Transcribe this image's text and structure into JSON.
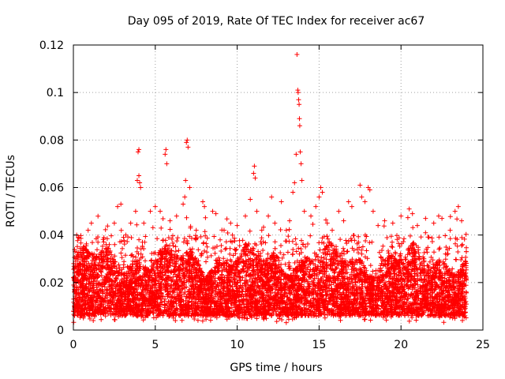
{
  "chart_data": {
    "type": "scatter",
    "title": "Day 095 of 2019, Rate Of TEC Index for receiver ac67",
    "xlabel": "GPS time / hours",
    "ylabel": "ROTI / TECUs",
    "xlim": [
      0,
      25
    ],
    "ylim": [
      0,
      0.12
    ],
    "x_ticks": [
      0,
      5,
      10,
      15,
      20,
      25
    ],
    "x_tick_labels": [
      "0",
      "5",
      "10",
      "15",
      "20",
      "25"
    ],
    "y_ticks": [
      0,
      0.02,
      0.04,
      0.06,
      0.08,
      0.1,
      0.12
    ],
    "y_tick_labels": [
      "0",
      "0.02",
      "0.04",
      "0.06",
      "0.08",
      "0.1",
      "0.12"
    ],
    "grid": true,
    "marker": "+",
    "color": "#ff0000",
    "series": [
      {
        "name": "ROTI",
        "band": {
          "x_range": [
            0,
            24
          ],
          "typical_min": 0.006,
          "typical_max": 0.03,
          "point_count": 7000
        },
        "points": [
          [
            0.1,
            0.033
          ],
          [
            0.2,
            0.04
          ],
          [
            0.3,
            0.039
          ],
          [
            0.6,
            0.035
          ],
          [
            0.9,
            0.042
          ],
          [
            1.1,
            0.045
          ],
          [
            1.5,
            0.037
          ],
          [
            2.0,
            0.036
          ],
          [
            2.5,
            0.045
          ],
          [
            2.7,
            0.052
          ],
          [
            2.9,
            0.053
          ],
          [
            3.2,
            0.04
          ],
          [
            3.5,
            0.045
          ],
          [
            3.8,
            0.05
          ],
          [
            3.9,
            0.063
          ],
          [
            4.0,
            0.065
          ],
          [
            4.05,
            0.062
          ],
          [
            4.1,
            0.06
          ],
          [
            3.95,
            0.075
          ],
          [
            4.0,
            0.076
          ],
          [
            4.3,
            0.045
          ],
          [
            4.7,
            0.05
          ],
          [
            5.0,
            0.052
          ],
          [
            5.3,
            0.05
          ],
          [
            5.6,
            0.074
          ],
          [
            5.65,
            0.076
          ],
          [
            5.7,
            0.07
          ],
          [
            5.9,
            0.046
          ],
          [
            6.3,
            0.048
          ],
          [
            6.7,
            0.053
          ],
          [
            6.8,
            0.056
          ],
          [
            6.85,
            0.063
          ],
          [
            6.9,
            0.079
          ],
          [
            6.95,
            0.08
          ],
          [
            7.0,
            0.077
          ],
          [
            7.1,
            0.06
          ],
          [
            7.5,
            0.042
          ],
          [
            7.9,
            0.054
          ],
          [
            8.0,
            0.052
          ],
          [
            8.5,
            0.05
          ],
          [
            8.7,
            0.049
          ],
          [
            9.2,
            0.042
          ],
          [
            9.6,
            0.045
          ],
          [
            10.0,
            0.044
          ],
          [
            10.5,
            0.048
          ],
          [
            10.8,
            0.055
          ],
          [
            11.0,
            0.066
          ],
          [
            11.05,
            0.069
          ],
          [
            11.1,
            0.064
          ],
          [
            11.2,
            0.05
          ],
          [
            11.5,
            0.042
          ],
          [
            11.9,
            0.048
          ],
          [
            12.1,
            0.056
          ],
          [
            12.3,
            0.045
          ],
          [
            12.7,
            0.054
          ],
          [
            13.0,
            0.042
          ],
          [
            13.2,
            0.046
          ],
          [
            13.4,
            0.058
          ],
          [
            13.5,
            0.062
          ],
          [
            13.6,
            0.074
          ],
          [
            13.65,
            0.116
          ],
          [
            13.7,
            0.101
          ],
          [
            13.72,
            0.1
          ],
          [
            13.75,
            0.097
          ],
          [
            13.78,
            0.095
          ],
          [
            13.8,
            0.089
          ],
          [
            13.82,
            0.086
          ],
          [
            13.85,
            0.075
          ],
          [
            13.9,
            0.07
          ],
          [
            13.95,
            0.063
          ],
          [
            14.1,
            0.05
          ],
          [
            14.5,
            0.048
          ],
          [
            14.8,
            0.052
          ],
          [
            15.0,
            0.056
          ],
          [
            15.1,
            0.06
          ],
          [
            15.2,
            0.058
          ],
          [
            15.5,
            0.045
          ],
          [
            15.8,
            0.042
          ],
          [
            16.2,
            0.05
          ],
          [
            16.5,
            0.046
          ],
          [
            16.8,
            0.054
          ],
          [
            17.0,
            0.052
          ],
          [
            17.5,
            0.061
          ],
          [
            17.6,
            0.056
          ],
          [
            17.8,
            0.054
          ],
          [
            18.0,
            0.06
          ],
          [
            18.1,
            0.059
          ],
          [
            18.3,
            0.05
          ],
          [
            18.6,
            0.044
          ],
          [
            19.0,
            0.046
          ],
          [
            19.5,
            0.045
          ],
          [
            20.0,
            0.048
          ],
          [
            20.5,
            0.051
          ],
          [
            20.7,
            0.049
          ],
          [
            21.0,
            0.044
          ],
          [
            21.5,
            0.047
          ],
          [
            22.0,
            0.045
          ],
          [
            22.3,
            0.048
          ],
          [
            22.5,
            0.047
          ],
          [
            23.0,
            0.042
          ],
          [
            23.3,
            0.05
          ],
          [
            23.5,
            0.052
          ],
          [
            23.7,
            0.046
          ],
          [
            23.9,
            0.028
          ]
        ]
      }
    ]
  }
}
